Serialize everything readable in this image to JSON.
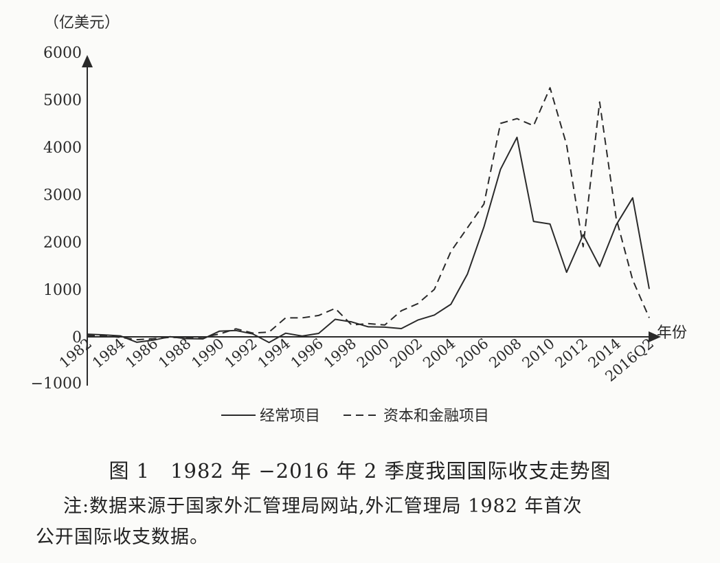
{
  "chart_data": {
    "type": "line",
    "y_unit_label": "（亿美元）",
    "x_axis_label": "年份",
    "ylim": [
      -1000,
      6000
    ],
    "y_ticks": [
      -1000,
      0,
      1000,
      2000,
      3000,
      4000,
      5000,
      6000
    ],
    "x_tick_labels": [
      "1982",
      "1984",
      "1986",
      "1988",
      "1990",
      "1992",
      "1994",
      "1996",
      "1998",
      "2000",
      "2002",
      "2004",
      "2006",
      "2008",
      "2010",
      "2012",
      "2014",
      "2016Q2"
    ],
    "x": [
      "1982",
      "1983",
      "1984",
      "1985",
      "1986",
      "1987",
      "1988",
      "1989",
      "1990",
      "1991",
      "1992",
      "1993",
      "1994",
      "1995",
      "1996",
      "1997",
      "1998",
      "1999",
      "2000",
      "2001",
      "2002",
      "2003",
      "2004",
      "2005",
      "2006",
      "2007",
      "2008",
      "2009",
      "2010",
      "2011",
      "2012",
      "2013",
      "2014",
      "2015",
      "2016Q2"
    ],
    "series": [
      {
        "name": "经常项目",
        "style": "solid",
        "values": [
          57,
          42,
          20,
          -114,
          -70,
          3,
          -38,
          -43,
          120,
          133,
          64,
          -119,
          77,
          16,
          72,
          370,
          315,
          211,
          205,
          174,
          354,
          459,
          687,
          1324,
          2318,
          3532,
          4206,
          2433,
          2378,
          1361,
          2154,
          1482,
          2360,
          2931,
          1010
        ]
      },
      {
        "name": "资本和金融项目",
        "style": "dashed",
        "values": [
          30,
          20,
          -10,
          -60,
          -40,
          -10,
          -20,
          -10,
          60,
          170,
          80,
          100,
          400,
          400,
          450,
          600,
          250,
          280,
          250,
          550,
          700,
          1000,
          1800,
          2300,
          2800,
          4500,
          4600,
          4450,
          5250,
          4050,
          1900,
          4950,
          2500,
          1200,
          400
        ]
      }
    ]
  },
  "caption": "图 1　1982 年 −2016 年 2 季度我国国际收支走势图",
  "note_line1": "注:数据来源于国家外汇管理局网站,外汇管理局 1982 年首次",
  "note_line2": "公开国际收支数据。"
}
